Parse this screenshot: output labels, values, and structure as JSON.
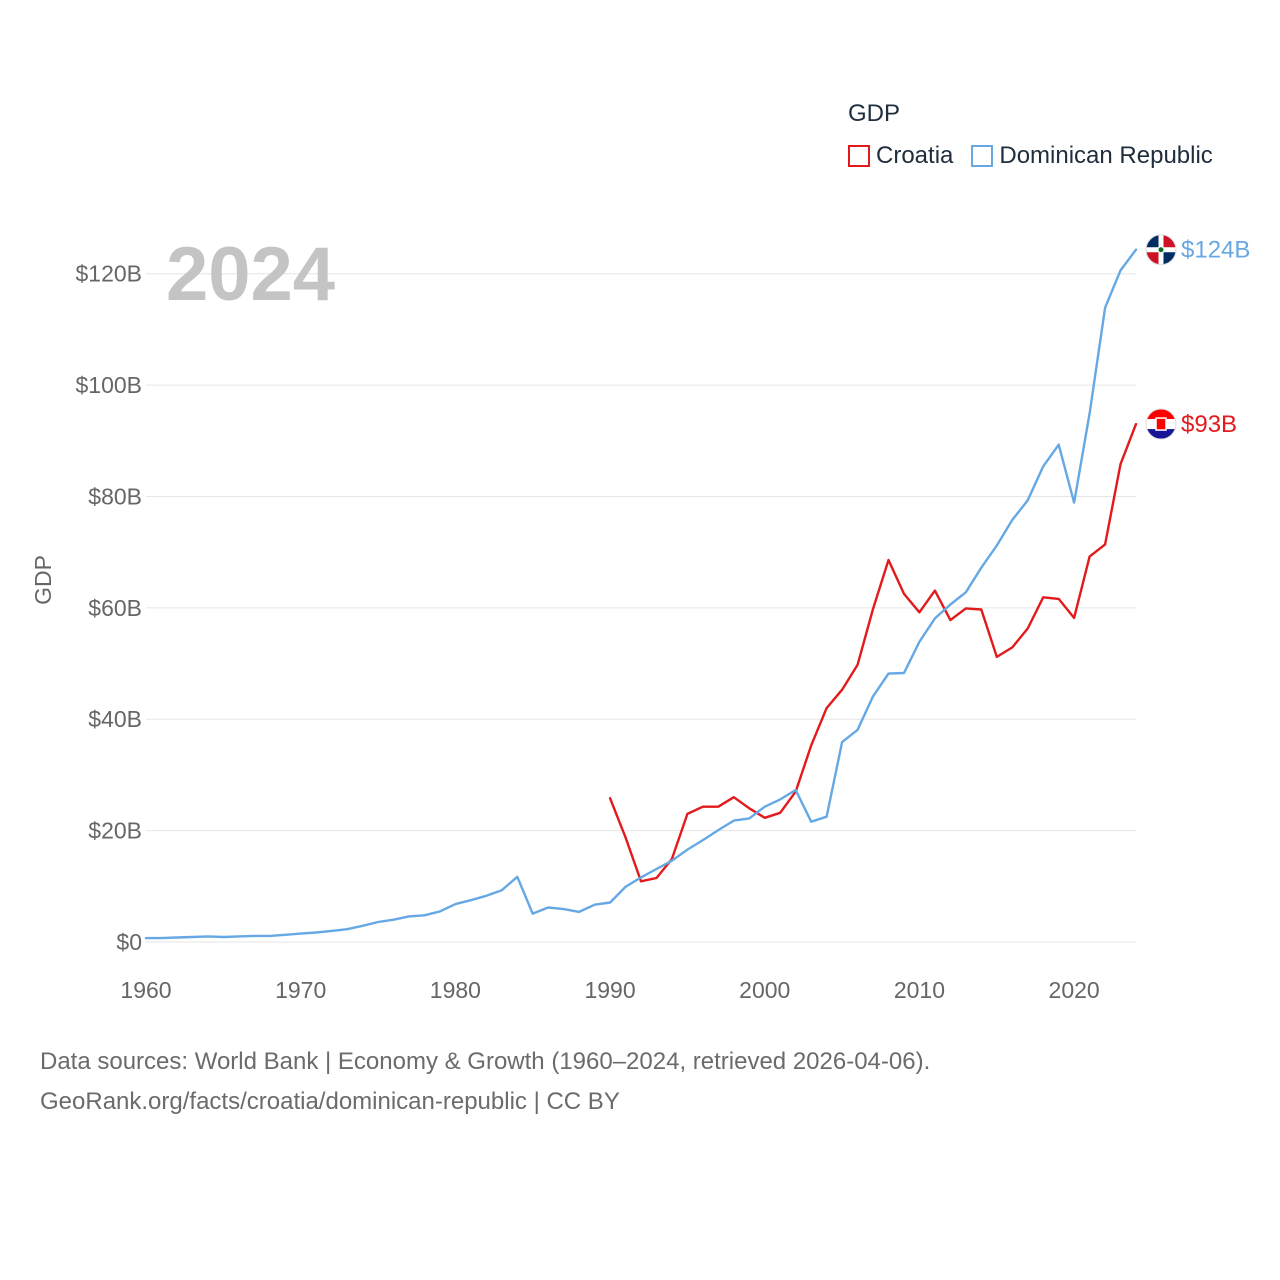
{
  "chart_data": {
    "type": "line",
    "year_watermark": "2024",
    "ylabel": "GDP",
    "xlabel": "",
    "ylim": [
      0,
      130
    ],
    "xlim": [
      1960,
      2024
    ],
    "y_ticks": [
      {
        "value": 0,
        "label": "$0"
      },
      {
        "value": 20,
        "label": "$20B"
      },
      {
        "value": 40,
        "label": "$40B"
      },
      {
        "value": 60,
        "label": "$60B"
      },
      {
        "value": 80,
        "label": "$80B"
      },
      {
        "value": 100,
        "label": "$100B"
      },
      {
        "value": 120,
        "label": "$120B"
      }
    ],
    "x_ticks": [
      {
        "value": 1960,
        "label": "1960"
      },
      {
        "value": 1970,
        "label": "1970"
      },
      {
        "value": 1980,
        "label": "1980"
      },
      {
        "value": 1990,
        "label": "1990"
      },
      {
        "value": 2000,
        "label": "2000"
      },
      {
        "value": 2010,
        "label": "2010"
      },
      {
        "value": 2020,
        "label": "2020"
      }
    ],
    "legend_title": "GDP",
    "legend_position": "top-right",
    "series": [
      {
        "name": "Croatia",
        "color": "#e31a1c",
        "end_label": "$93B",
        "flag": "croatia-flag-icon",
        "x": [
          1990,
          1991,
          1992,
          1993,
          1994,
          1995,
          1996,
          1997,
          1998,
          1999,
          2000,
          2001,
          2002,
          2003,
          2004,
          2005,
          2006,
          2007,
          2008,
          2009,
          2010,
          2011,
          2012,
          2013,
          2014,
          2015,
          2016,
          2017,
          2018,
          2019,
          2020,
          2021,
          2022,
          2023,
          2024
        ],
        "values": [
          25.8,
          18.8,
          10.9,
          11.5,
          14.9,
          23.0,
          24.3,
          24.3,
          26.0,
          24.0,
          22.3,
          23.2,
          27.0,
          35.3,
          42.0,
          45.3,
          49.8,
          59.8,
          68.6,
          62.5,
          59.2,
          63.1,
          57.8,
          59.9,
          59.7,
          51.2,
          52.9,
          56.3,
          61.9,
          61.6,
          58.2,
          69.2,
          71.4,
          85.8,
          93.0
        ]
      },
      {
        "name": "Dominican Republic",
        "color": "#66a8e4",
        "end_label": "$124B",
        "flag": "dominican-republic-flag-icon",
        "x": [
          1960,
          1961,
          1962,
          1963,
          1964,
          1965,
          1966,
          1967,
          1968,
          1969,
          1970,
          1971,
          1972,
          1973,
          1974,
          1975,
          1976,
          1977,
          1978,
          1979,
          1980,
          1981,
          1982,
          1983,
          1984,
          1985,
          1986,
          1987,
          1988,
          1989,
          1990,
          1991,
          1992,
          1993,
          1994,
          1995,
          1996,
          1997,
          1998,
          1999,
          2000,
          2001,
          2002,
          2003,
          2004,
          2005,
          2006,
          2007,
          2008,
          2009,
          2010,
          2011,
          2012,
          2013,
          2014,
          2015,
          2016,
          2017,
          2018,
          2019,
          2020,
          2021,
          2022,
          2023,
          2024
        ],
        "values": [
          0.7,
          0.7,
          0.8,
          0.9,
          1.0,
          0.9,
          1.0,
          1.1,
          1.1,
          1.3,
          1.5,
          1.7,
          2.0,
          2.3,
          2.9,
          3.6,
          4.0,
          4.6,
          4.8,
          5.5,
          6.8,
          7.5,
          8.3,
          9.3,
          11.7,
          5.1,
          6.2,
          5.9,
          5.4,
          6.7,
          7.1,
          9.9,
          11.6,
          13.1,
          14.6,
          16.6,
          18.3,
          20.1,
          21.8,
          22.2,
          24.3,
          25.6,
          27.3,
          21.6,
          22.5,
          35.9,
          38.1,
          44.1,
          48.2,
          48.3,
          53.9,
          58.1,
          60.6,
          62.8,
          67.2,
          71.2,
          75.8,
          79.3,
          85.4,
          89.3,
          78.9,
          94.9,
          113.9,
          120.6,
          124.3
        ]
      }
    ]
  },
  "footer": {
    "line1": "Data sources: World Bank | Economy & Growth (1960–2024, retrieved 2026-04-06).",
    "line2": "GeoRank.org/facts/croatia/dominican-republic | CC BY"
  }
}
